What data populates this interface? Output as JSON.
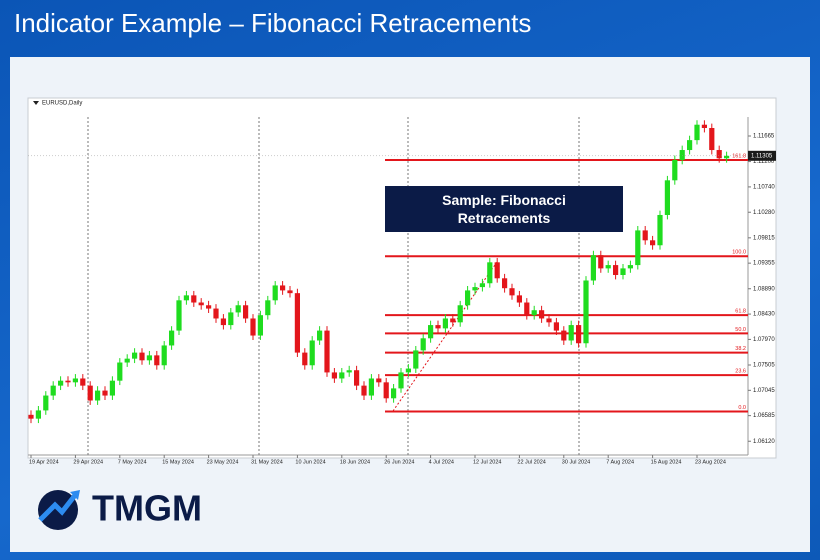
{
  "chart_data": {
    "type": "candlestick",
    "title": "Indicator Example – Fibonacci Retracements",
    "symbol": "EURUSD,Daily",
    "annotation": "Sample: Fibonacci Retracements",
    "categories": [
      "19 Apr 2024",
      null,
      null,
      null,
      null,
      null,
      "29 Apr 2024",
      null,
      null,
      null,
      null,
      null,
      "7 May 2024",
      null,
      null,
      null,
      null,
      null,
      "15 May 2024",
      null,
      null,
      null,
      null,
      null,
      "23 May 2024",
      null,
      null,
      null,
      null,
      null,
      "31 May 2024",
      null,
      null,
      null,
      null,
      null,
      "10 Jun 2024",
      null,
      null,
      null,
      null,
      null,
      "18 Jun 2024",
      null,
      null,
      null,
      null,
      null,
      "26 Jun 2024",
      null,
      null,
      null,
      null,
      null,
      "4 Jul 2024",
      null,
      null,
      null,
      null,
      null,
      "12 Jul 2024",
      null,
      null,
      null,
      null,
      null,
      "22 Jul 2024",
      null,
      null,
      null,
      null,
      null,
      "30 Jul 2024",
      null,
      null,
      null,
      null,
      null,
      "7 Aug 2024",
      null,
      null,
      null,
      null,
      null,
      "15 Aug 2024",
      null,
      null,
      null,
      null,
      null,
      "23 Aug 2024",
      null,
      null,
      null,
      null
    ],
    "open": [
      1.066,
      1.0653,
      1.0668,
      1.0695,
      1.0713,
      1.0722,
      1.0719,
      1.0726,
      1.0713,
      1.0686,
      1.0704,
      1.0695,
      1.0722,
      1.0755,
      1.0762,
      1.0773,
      1.0759,
      1.0768,
      1.075,
      1.0786,
      1.0813,
      1.0868,
      1.0877,
      1.0864,
      1.0859,
      1.0853,
      1.0835,
      1.0823,
      1.0846,
      1.0859,
      1.0835,
      1.0804,
      1.0841,
      1.0868,
      1.0895,
      1.0886,
      1.0881,
      1.0773,
      1.075,
      1.0795,
      1.0813,
      1.0737,
      1.0726,
      1.0737,
      1.0741,
      1.0713,
      1.0695,
      1.0726,
      1.0719,
      1.069,
      1.0708,
      1.0737,
      1.0744,
      1.0777,
      1.0799,
      1.0823,
      1.0817,
      1.0835,
      1.0828,
      1.0859,
      1.0886,
      1.0892,
      1.0899,
      1.0937,
      1.0908,
      1.089,
      1.0877,
      1.0864,
      1.0841,
      1.085,
      1.0835,
      1.0828,
      1.0813,
      1.0795,
      1.0823,
      1.079,
      1.0904,
      1.095,
      1.0926,
      1.0932,
      1.0914,
      1.0926,
      1.0932,
      1.0995,
      1.0977,
      1.0968,
      1.1023,
      1.1086,
      1.1123,
      1.1141,
      1.1159,
      1.1187,
      1.1181,
      1.1141,
      1.1126
    ],
    "high": [
      1.0668,
      1.0676,
      1.0703,
      1.0721,
      1.073,
      1.073,
      1.0734,
      1.0734,
      1.0721,
      1.0712,
      1.0712,
      1.073,
      1.0763,
      1.077,
      1.0781,
      1.0781,
      1.0776,
      1.0776,
      1.0794,
      1.0821,
      1.0876,
      1.0885,
      1.0885,
      1.0872,
      1.0867,
      1.0861,
      1.0843,
      1.0854,
      1.0867,
      1.0867,
      1.0843,
      1.0849,
      1.0876,
      1.0903,
      1.0903,
      1.0894,
      1.0889,
      1.0781,
      1.0803,
      1.0821,
      1.0821,
      1.0745,
      1.0745,
      1.0749,
      1.0749,
      1.0721,
      1.0734,
      1.0734,
      1.0727,
      1.0716,
      1.0745,
      1.0752,
      1.0785,
      1.0807,
      1.0831,
      1.0831,
      1.0843,
      1.0843,
      1.0867,
      1.0894,
      1.09,
      1.0907,
      1.0945,
      1.0945,
      1.0916,
      1.0898,
      1.0885,
      1.0872,
      1.0858,
      1.0858,
      1.0843,
      1.0836,
      1.0821,
      1.0831,
      1.0831,
      1.0912,
      1.0958,
      1.0958,
      1.094,
      1.094,
      1.0934,
      1.094,
      1.1003,
      1.1003,
      1.0985,
      1.1031,
      1.1094,
      1.1131,
      1.1149,
      1.1167,
      1.1195,
      1.1195,
      1.1189,
      1.1149,
      1.1138
    ],
    "low": [
      1.0645,
      1.0645,
      1.066,
      1.0687,
      1.0705,
      1.0711,
      1.0711,
      1.0705,
      1.0678,
      1.0678,
      1.0687,
      1.0687,
      1.0714,
      1.0747,
      1.0754,
      1.0751,
      1.0751,
      1.0742,
      1.0742,
      1.0778,
      1.0805,
      1.086,
      1.0856,
      1.0851,
      1.0845,
      1.0827,
      1.0815,
      1.0815,
      1.0838,
      1.0827,
      1.0796,
      1.0796,
      1.0833,
      1.086,
      1.0878,
      1.0873,
      1.0765,
      1.0742,
      1.0742,
      1.0787,
      1.0729,
      1.0718,
      1.0718,
      1.0729,
      1.0705,
      1.0687,
      1.0687,
      1.0711,
      1.0682,
      1.0682,
      1.07,
      1.0729,
      1.0736,
      1.0769,
      1.0791,
      1.0809,
      1.0809,
      1.082,
      1.082,
      1.0851,
      1.0878,
      1.0884,
      1.0891,
      1.09,
      1.0882,
      1.0869,
      1.0856,
      1.0833,
      1.0833,
      1.0827,
      1.082,
      1.0805,
      1.0787,
      1.0787,
      1.0782,
      1.0782,
      1.0896,
      1.0918,
      1.0918,
      1.0906,
      1.0906,
      1.0918,
      1.0924,
      1.0969,
      1.096,
      1.096,
      1.1015,
      1.1078,
      1.1115,
      1.1133,
      1.1151,
      1.1173,
      1.1133,
      1.1118,
      1.1118
    ],
    "close": [
      1.0653,
      1.0668,
      1.0695,
      1.0713,
      1.0722,
      1.0719,
      1.0726,
      1.0713,
      1.0686,
      1.0704,
      1.0695,
      1.0722,
      1.0755,
      1.0762,
      1.0773,
      1.0759,
      1.0768,
      1.075,
      1.0786,
      1.0813,
      1.0868,
      1.0877,
      1.0864,
      1.0859,
      1.0853,
      1.0835,
      1.0823,
      1.0846,
      1.0859,
      1.0835,
      1.0804,
      1.0841,
      1.0868,
      1.0895,
      1.0886,
      1.0881,
      1.0773,
      1.075,
      1.0795,
      1.0813,
      1.0737,
      1.0726,
      1.0737,
      1.0741,
      1.0713,
      1.0695,
      1.0726,
      1.0719,
      1.069,
      1.0708,
      1.0737,
      1.0744,
      1.0777,
      1.0799,
      1.0823,
      1.0817,
      1.0835,
      1.0828,
      1.0859,
      1.0886,
      1.0892,
      1.0899,
      1.0937,
      1.0908,
      1.089,
      1.0877,
      1.0864,
      1.0841,
      1.085,
      1.0835,
      1.0828,
      1.0813,
      1.0795,
      1.0823,
      1.079,
      1.0904,
      1.095,
      1.0926,
      1.0932,
      1.0914,
      1.0926,
      1.0932,
      1.0995,
      1.0977,
      1.0968,
      1.1023,
      1.1086,
      1.1123,
      1.1141,
      1.1159,
      1.1187,
      1.1181,
      1.1141,
      1.1126,
      1.11305
    ],
    "up_color": "#1fdc1f",
    "down_color": "#e3161b",
    "last_price": {
      "value": 1.11305,
      "label": "1.11305"
    },
    "fibonacci": {
      "color": "#e3161b",
      "levels": [
        {
          "value": 1.1123,
          "label": "161.8"
        },
        {
          "value": 1.0948,
          "label": "100.0"
        },
        {
          "value": 1.0841,
          "label": "61.8"
        },
        {
          "value": 1.0808,
          "label": "50.0"
        },
        {
          "value": 1.0773,
          "label": "38.2"
        },
        {
          "value": 1.0732,
          "label": "23.6"
        },
        {
          "value": 1.0666,
          "label": "0.0"
        }
      ]
    },
    "ylim": [
      1.0587,
      1.1201
    ],
    "yticks": [
      1.11665,
      {
        "value": 1.112,
        "label": "1.11200"
      },
      {
        "value": 1.1074,
        "label": "1.10740"
      },
      {
        "value": 1.1028,
        "label": "1.10280"
      },
      1.09815,
      1.09355,
      {
        "value": 1.0889,
        "label": "1.08890"
      },
      {
        "value": 1.0843,
        "label": "1.08430"
      },
      {
        "value": 1.0797,
        "label": "1.07970"
      },
      1.07505,
      1.07045,
      1.06585,
      {
        "value": 1.0612,
        "label": "1.06120"
      }
    ],
    "grid": false
  },
  "brand": "TMGM"
}
